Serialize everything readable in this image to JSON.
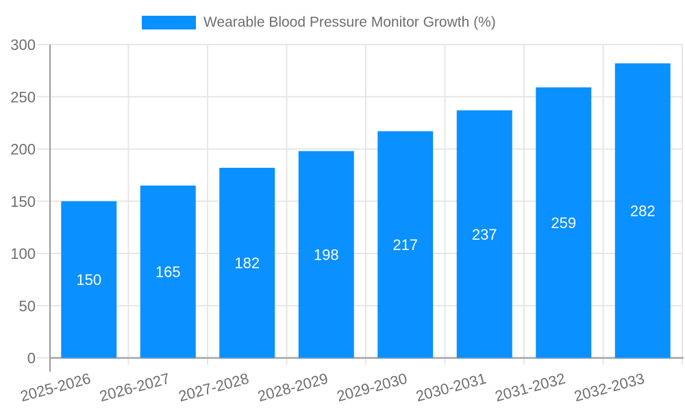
{
  "legend": {
    "label": "Wearable Blood Pressure Monitor Growth (%)"
  },
  "chart_data": {
    "type": "bar",
    "title": "Wearable Blood Pressure Monitor Growth (%)",
    "categories": [
      "2025-2026",
      "2026-2027",
      "2027-2028",
      "2028-2029",
      "2029-2030",
      "2030-2031",
      "2031-2032",
      "2032-2033"
    ],
    "values": [
      150,
      165,
      182,
      198,
      217,
      237,
      259,
      282
    ],
    "xlabel": "",
    "ylabel": "",
    "ylim": [
      0,
      300
    ],
    "yticks": [
      0,
      50,
      100,
      150,
      200,
      250,
      300
    ],
    "grid": true,
    "legend_position": "top",
    "x_label_rotation_deg": -15,
    "colors": {
      "bar": "#0A90FF",
      "value_label": "#FFFFFF",
      "axis_text": "#6E6E6E",
      "gridline": "#E6E6E6",
      "baseline": "#B3B3B3",
      "axis_line": "#999999",
      "background": "#FFFFFF"
    }
  }
}
